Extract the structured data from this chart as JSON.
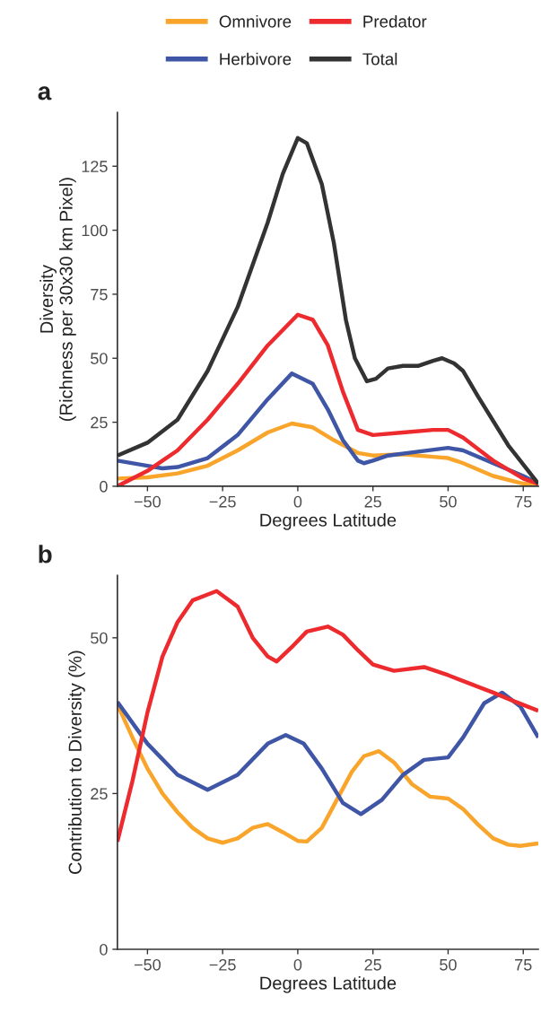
{
  "chart_data": [
    {
      "type": "line",
      "xlabel": "Degrees Latitude",
      "ylabel": "Diversity\n(Richness per 30x30 km Pixel)",
      "annotations": [
        "a"
      ],
      "xlim": [
        -60,
        80
      ],
      "ylim": [
        0,
        146
      ],
      "xticks": [
        -50,
        -25,
        0,
        25,
        50,
        75
      ],
      "yticks": [
        0,
        25,
        50,
        75,
        100,
        125
      ],
      "grid": false,
      "legend": "top",
      "line_style": "solid",
      "marker": "none",
      "series": [
        {
          "name": "Omnivore",
          "color": "#f9a52c",
          "x": [
            -60,
            -50,
            -40,
            -30,
            -20,
            -10,
            -2,
            5,
            12,
            20,
            25,
            35,
            45,
            50,
            55,
            65,
            75,
            80
          ],
          "values": [
            3,
            3.5,
            5,
            8,
            14,
            21,
            24.5,
            23,
            18,
            13,
            12,
            12.5,
            11.5,
            11,
            9,
            4,
            1,
            1
          ]
        },
        {
          "name": "Herbivore",
          "color": "#3f55a5",
          "x": [
            -60,
            -50,
            -45,
            -40,
            -30,
            -20,
            -10,
            -2,
            5,
            10,
            15,
            20,
            22,
            25,
            30,
            40,
            50,
            55,
            65,
            75,
            80
          ],
          "values": [
            10,
            8,
            7,
            7.5,
            11,
            20,
            34,
            44,
            40,
            30,
            18,
            10,
            9,
            10,
            12,
            13.5,
            15,
            14,
            9,
            4,
            1
          ]
        },
        {
          "name": "Predator",
          "color": "#ed2b2f",
          "x": [
            -60,
            -50,
            -40,
            -30,
            -20,
            -10,
            0,
            5,
            10,
            15,
            20,
            25,
            35,
            45,
            50,
            55,
            65,
            75,
            80
          ],
          "values": [
            0,
            6,
            14,
            26,
            40,
            55,
            67,
            65,
            55,
            37,
            22,
            20,
            21,
            22,
            22,
            19,
            10,
            3,
            1
          ]
        },
        {
          "name": "Total",
          "color": "#333333",
          "x": [
            -60,
            -50,
            -40,
            -30,
            -20,
            -10,
            -5,
            0,
            3,
            8,
            12,
            16,
            19,
            23,
            26,
            30,
            35,
            40,
            45,
            48,
            52,
            55,
            60,
            70,
            80
          ],
          "values": [
            12,
            17,
            26,
            45,
            70,
            103,
            122,
            136,
            134,
            118,
            95,
            65,
            50,
            41,
            42,
            46,
            47,
            47,
            49,
            50,
            48,
            45,
            35,
            16,
            1
          ]
        }
      ]
    },
    {
      "type": "line",
      "xlabel": "Degrees Latitude",
      "ylabel": "Contribution to Diversity (%)",
      "annotations": [
        "b"
      ],
      "xlim": [
        -60,
        80
      ],
      "ylim": [
        0,
        60
      ],
      "xticks": [
        -50,
        -25,
        0,
        25,
        50,
        75
      ],
      "yticks": [
        0,
        25,
        50
      ],
      "grid": false,
      "line_style": "solid",
      "marker": "none",
      "series": [
        {
          "color": "#f9a52c",
          "x": [
            -60,
            -55,
            -50,
            -45,
            -40,
            -35,
            -30,
            -25,
            -20,
            -15,
            -10,
            -5,
            0,
            3,
            8,
            13,
            18,
            22,
            27,
            32,
            38,
            44,
            50,
            55,
            60,
            65,
            70,
            74,
            80
          ],
          "values": [
            39.3,
            34,
            29,
            25,
            22,
            19.5,
            17.8,
            17.1,
            17.8,
            19.5,
            20.1,
            18.8,
            17.4,
            17.3,
            19.5,
            24,
            28.5,
            31,
            31.8,
            30,
            26.5,
            24.5,
            24.2,
            22.5,
            20,
            17.8,
            16.8,
            16.6,
            17
          ]
        },
        {
          "color": "#3f55a5",
          "x": [
            -60,
            -50,
            -40,
            -30,
            -20,
            -10,
            -4,
            2,
            8,
            15,
            21,
            28,
            35,
            42,
            50,
            55,
            62,
            68,
            74,
            80
          ],
          "values": [
            39.7,
            33,
            28,
            25.6,
            28,
            33,
            34.4,
            33,
            29,
            23.5,
            21.7,
            24,
            28,
            30.4,
            30.8,
            34,
            39.5,
            41.2,
            39,
            34
          ]
        },
        {
          "color": "#ed2b2f",
          "x": [
            -60,
            -55,
            -50,
            -45,
            -40,
            -35,
            -27,
            -20,
            -15,
            -10,
            -7,
            -2,
            3,
            10,
            15,
            20,
            25,
            32,
            42,
            50,
            58,
            65,
            72,
            80
          ],
          "values": [
            17.3,
            27,
            38,
            47,
            52.5,
            56,
            57.5,
            55,
            50,
            47,
            46.2,
            48.5,
            51,
            51.8,
            50.5,
            48,
            45.7,
            44.7,
            45.3,
            44,
            42.5,
            41.2,
            39.8,
            38.3
          ]
        }
      ]
    }
  ]
}
